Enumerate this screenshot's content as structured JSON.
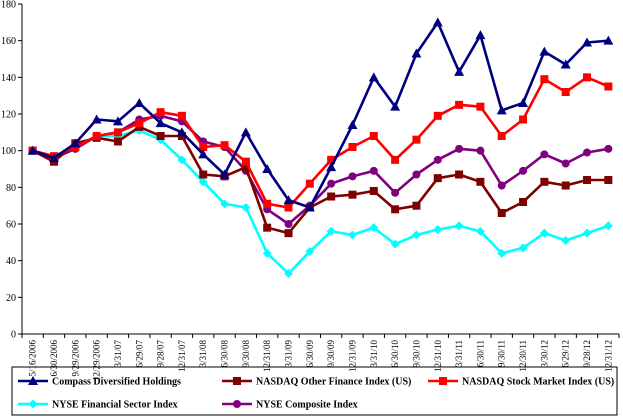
{
  "chart_data": {
    "type": "line",
    "title": "",
    "xlabel": "",
    "ylabel": "",
    "ylim": [
      0,
      180
    ],
    "yticks": [
      0,
      20,
      40,
      60,
      80,
      100,
      120,
      140,
      160,
      180
    ],
    "grid": false,
    "legend_position": "bottom",
    "categories": [
      "5/16/2006",
      "6/30/2006",
      "9/29/2006",
      "12/29/2006",
      "3/31/07",
      "6/29/07",
      "9/28/07",
      "12/31/07",
      "3/31/08",
      "6/30/08",
      "9/30/08",
      "12/31/08",
      "3/31/09",
      "6/30/09",
      "9/30/09",
      "12/31/09",
      "3/31/10",
      "6/30/10",
      "9/30/10",
      "12/31/10",
      "3/31/11",
      "6/30/11",
      "9/30/11",
      "12/30/11",
      "3/30/12",
      "6/29/12",
      "9/28/12",
      "12/31/12"
    ],
    "series": [
      {
        "name": "Compass Diversified Holdings",
        "color": "#00007f",
        "marker": "triangle",
        "values": [
          100,
          96,
          104,
          117,
          116,
          126,
          115,
          110,
          98,
          87,
          110,
          90,
          73,
          69,
          91,
          114,
          140,
          124,
          153,
          170,
          143,
          163,
          122,
          126,
          154,
          147,
          159,
          160
        ]
      },
      {
        "name": "NASDAQ Other Finance Index (US)",
        "color": "#7f0000",
        "marker": "square",
        "values": [
          100,
          94,
          104,
          107,
          105,
          113,
          108,
          108,
          87,
          86,
          91,
          58,
          55,
          69,
          75,
          76,
          78,
          68,
          70,
          85,
          87,
          83,
          66,
          72,
          83,
          81,
          84,
          84
        ]
      },
      {
        "name": "NASDAQ Stock Market Index (US)",
        "color": "#ff0000",
        "marker": "square",
        "values": [
          100,
          97,
          102,
          108,
          110,
          115,
          121,
          119,
          102,
          103,
          94,
          71,
          69,
          82,
          95,
          102,
          108,
          95,
          106,
          119,
          125,
          124,
          108,
          117,
          139,
          132,
          140,
          135
        ]
      },
      {
        "name": "NYSE Financial Sector Index",
        "color": "#00ffff",
        "marker": "diamond",
        "values": [
          100,
          96,
          101,
          108,
          108,
          111,
          106,
          95,
          83,
          71,
          69,
          44,
          33,
          45,
          56,
          54,
          58,
          49,
          54,
          57,
          59,
          56,
          44,
          47,
          55,
          51,
          55,
          59
        ]
      },
      {
        "name": "NYSE Composite Index",
        "color": "#800080",
        "marker": "circle",
        "values": [
          100,
          96,
          101,
          108,
          110,
          117,
          119,
          116,
          105,
          102,
          89,
          68,
          60,
          70,
          82,
          86,
          89,
          77,
          87,
          95,
          101,
          100,
          81,
          89,
          98,
          93,
          99,
          101
        ]
      }
    ]
  }
}
